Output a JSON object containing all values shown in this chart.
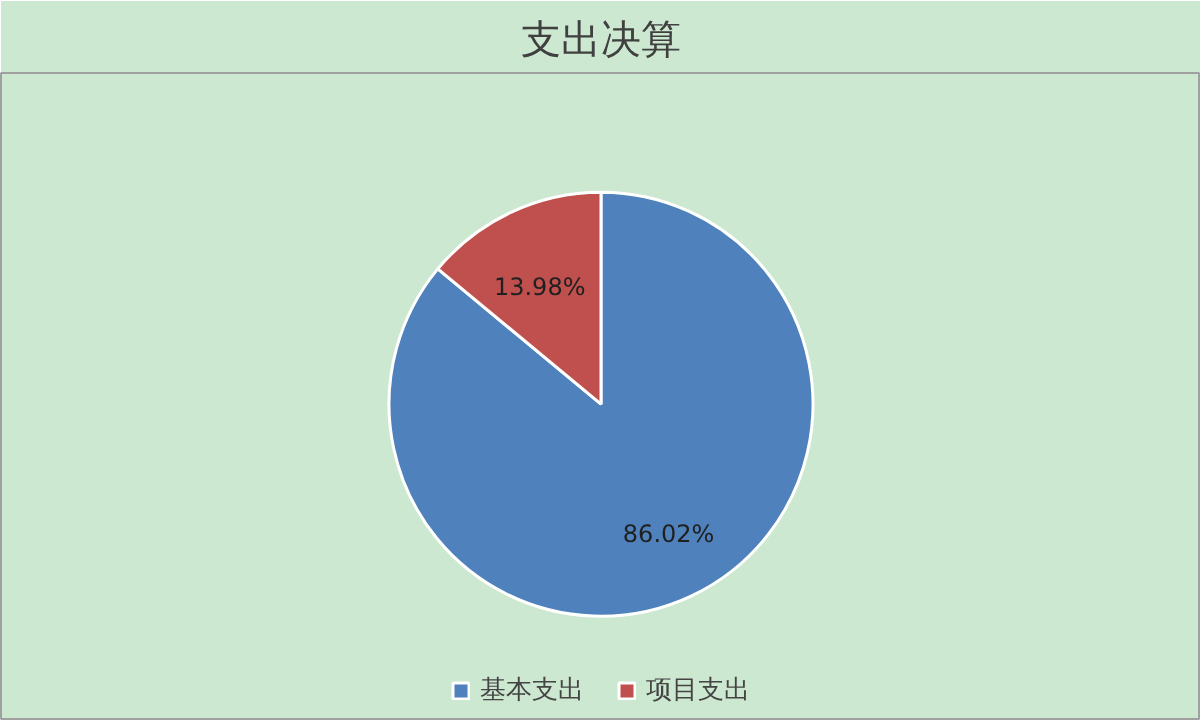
{
  "chart_data": {
    "type": "pie",
    "title": "支出决算",
    "categories": [
      "基本支出",
      "项目支出"
    ],
    "values": [
      86.02,
      13.98
    ],
    "colors": [
      "#4f81bd",
      "#c0504d"
    ],
    "value_labels": [
      "86.02%",
      "13.98%"
    ],
    "legend": "bottom"
  }
}
